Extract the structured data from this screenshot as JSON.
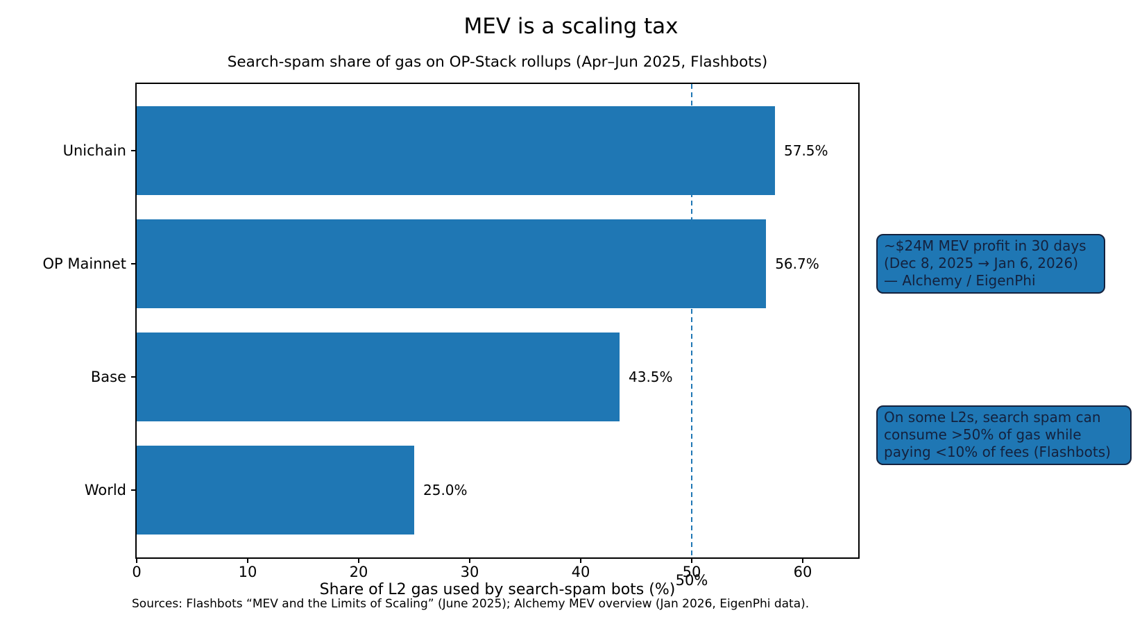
{
  "figure": {
    "title": "MEV is a scaling tax",
    "subtitle": "Search-spam share of gas on OP-Stack rollups (Apr–Jun 2025, Flashbots)",
    "xlabel": "Share of L2 gas used by search-spam bots (%)",
    "source_note": "Sources: Flashbots “MEV and the Limits of Scaling” (June 2025); Alchemy MEV overview (Jan 2026, EigenPhi data).",
    "colors": {
      "bar": "#1f77b4",
      "reference_line": "#1f77b4",
      "annotation_fill": "#1f77b4",
      "annotation_border": "#14213d",
      "annotation_text": "#14213d",
      "text": "#000000",
      "background": "#ffffff"
    }
  },
  "chart_data": {
    "type": "bar",
    "orientation": "horizontal",
    "title": "MEV is a scaling tax",
    "subtitle": "Search-spam share of gas on OP-Stack rollups (Apr–Jun 2025, Flashbots)",
    "xlabel": "Share of L2 gas used by search-spam bots (%)",
    "ylabel": "",
    "categories": [
      "Unichain",
      "OP Mainnet",
      "Base",
      "World"
    ],
    "values": [
      57.5,
      56.7,
      43.5,
      25.0
    ],
    "value_labels": [
      "57.5%",
      "56.7%",
      "43.5%",
      "25.0%"
    ],
    "xlim": [
      0,
      65
    ],
    "xticks": [
      "0",
      "10",
      "20",
      "30",
      "40",
      "50",
      "60"
    ],
    "xtick_values": [
      0,
      10,
      20,
      30,
      40,
      50,
      60
    ],
    "grid": false,
    "legend": null,
    "bar_color": "#1f77b4",
    "reference_line": {
      "x": 50,
      "label": "50%",
      "style": "dashed",
      "color": "#1f77b4"
    }
  },
  "annotations": {
    "mev_profit": {
      "line1": "~$24M MEV profit in 30 days",
      "line2": "(Dec 8, 2025 → Jan 6, 2026)",
      "line3": "— Alchemy / EigenPhi"
    },
    "spam_note": {
      "line1": "On some L2s, search spam can",
      "line2": "consume >50% of gas while",
      "line3": "paying <10% of fees (Flashbots)"
    }
  }
}
